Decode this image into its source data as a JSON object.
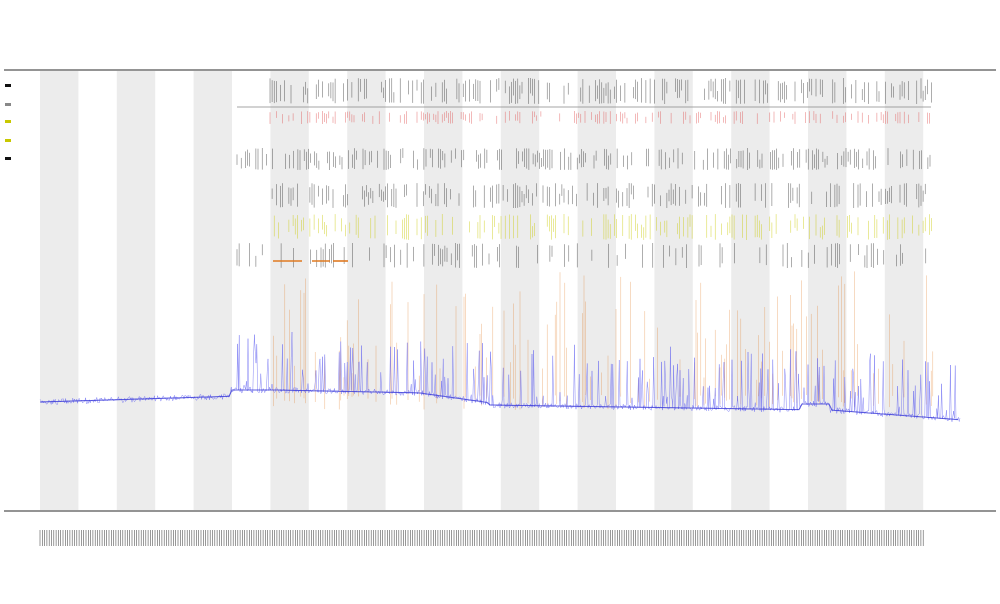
{
  "chart_data": {
    "type": "line",
    "title": [
      "",
      "",
      ""
    ],
    "xlabel": "",
    "ylabel": "",
    "grid": false,
    "day_bands": 12,
    "series": [
      {
        "color": "#5b5bf0",
        "y_start": 402,
        "y_end": 420
      }
    ],
    "event_rows": [
      {
        "color": "#333333"
      },
      {
        "color": "#e05050"
      },
      {
        "color": "#333333"
      },
      {
        "color": "#333333"
      },
      {
        "color": "#c8c800"
      },
      {
        "color": "#e07a20"
      }
    ]
  },
  "colors": {
    "band": "#ececec",
    "trace": "#5b5bf0",
    "orange": "#e07a20",
    "red": "#e05050",
    "yellow": "#c8c800",
    "black": "#333333"
  }
}
